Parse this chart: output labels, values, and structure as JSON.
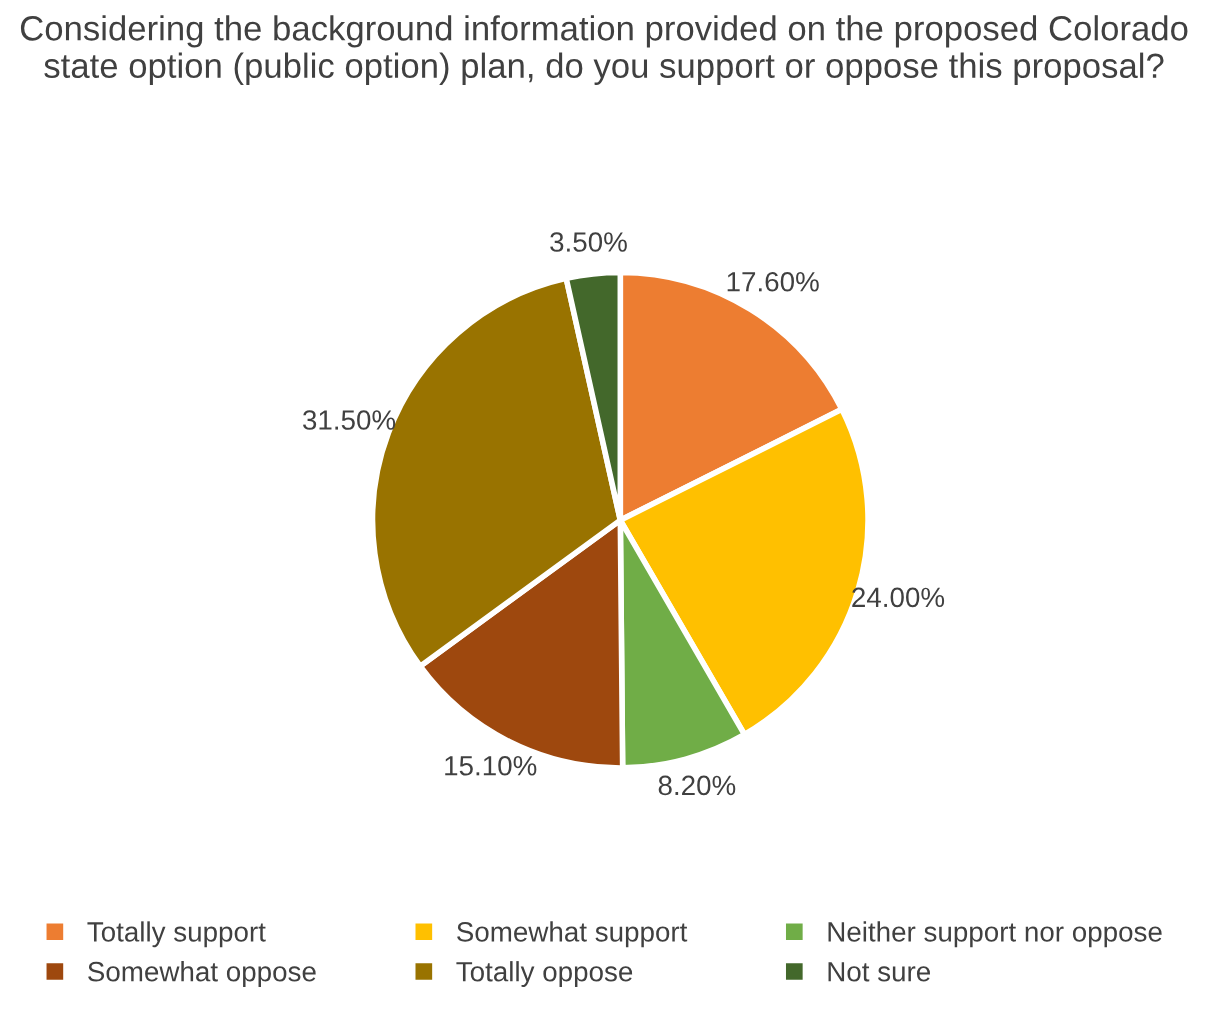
{
  "chart_data": {
    "type": "pie",
    "title": "Considering the background information provided on the proposed Colorado state option (public option) plan, do you support or oppose this proposal?",
    "categories": [
      "Totally support",
      "Somewhat support",
      "Neither support nor oppose",
      "Somewhat oppose",
      "Totally oppose",
      "Not sure"
    ],
    "values": [
      17.6,
      24.0,
      8.2,
      15.1,
      31.5,
      3.5
    ],
    "value_labels": [
      "17.60%",
      "24.00%",
      "8.20%",
      "15.10%",
      "31.50%",
      "3.50%"
    ],
    "colors": [
      "#ed7d31",
      "#ffc000",
      "#70ad47",
      "#9e480e",
      "#997300",
      "#43682b"
    ],
    "legend": "bottom"
  }
}
